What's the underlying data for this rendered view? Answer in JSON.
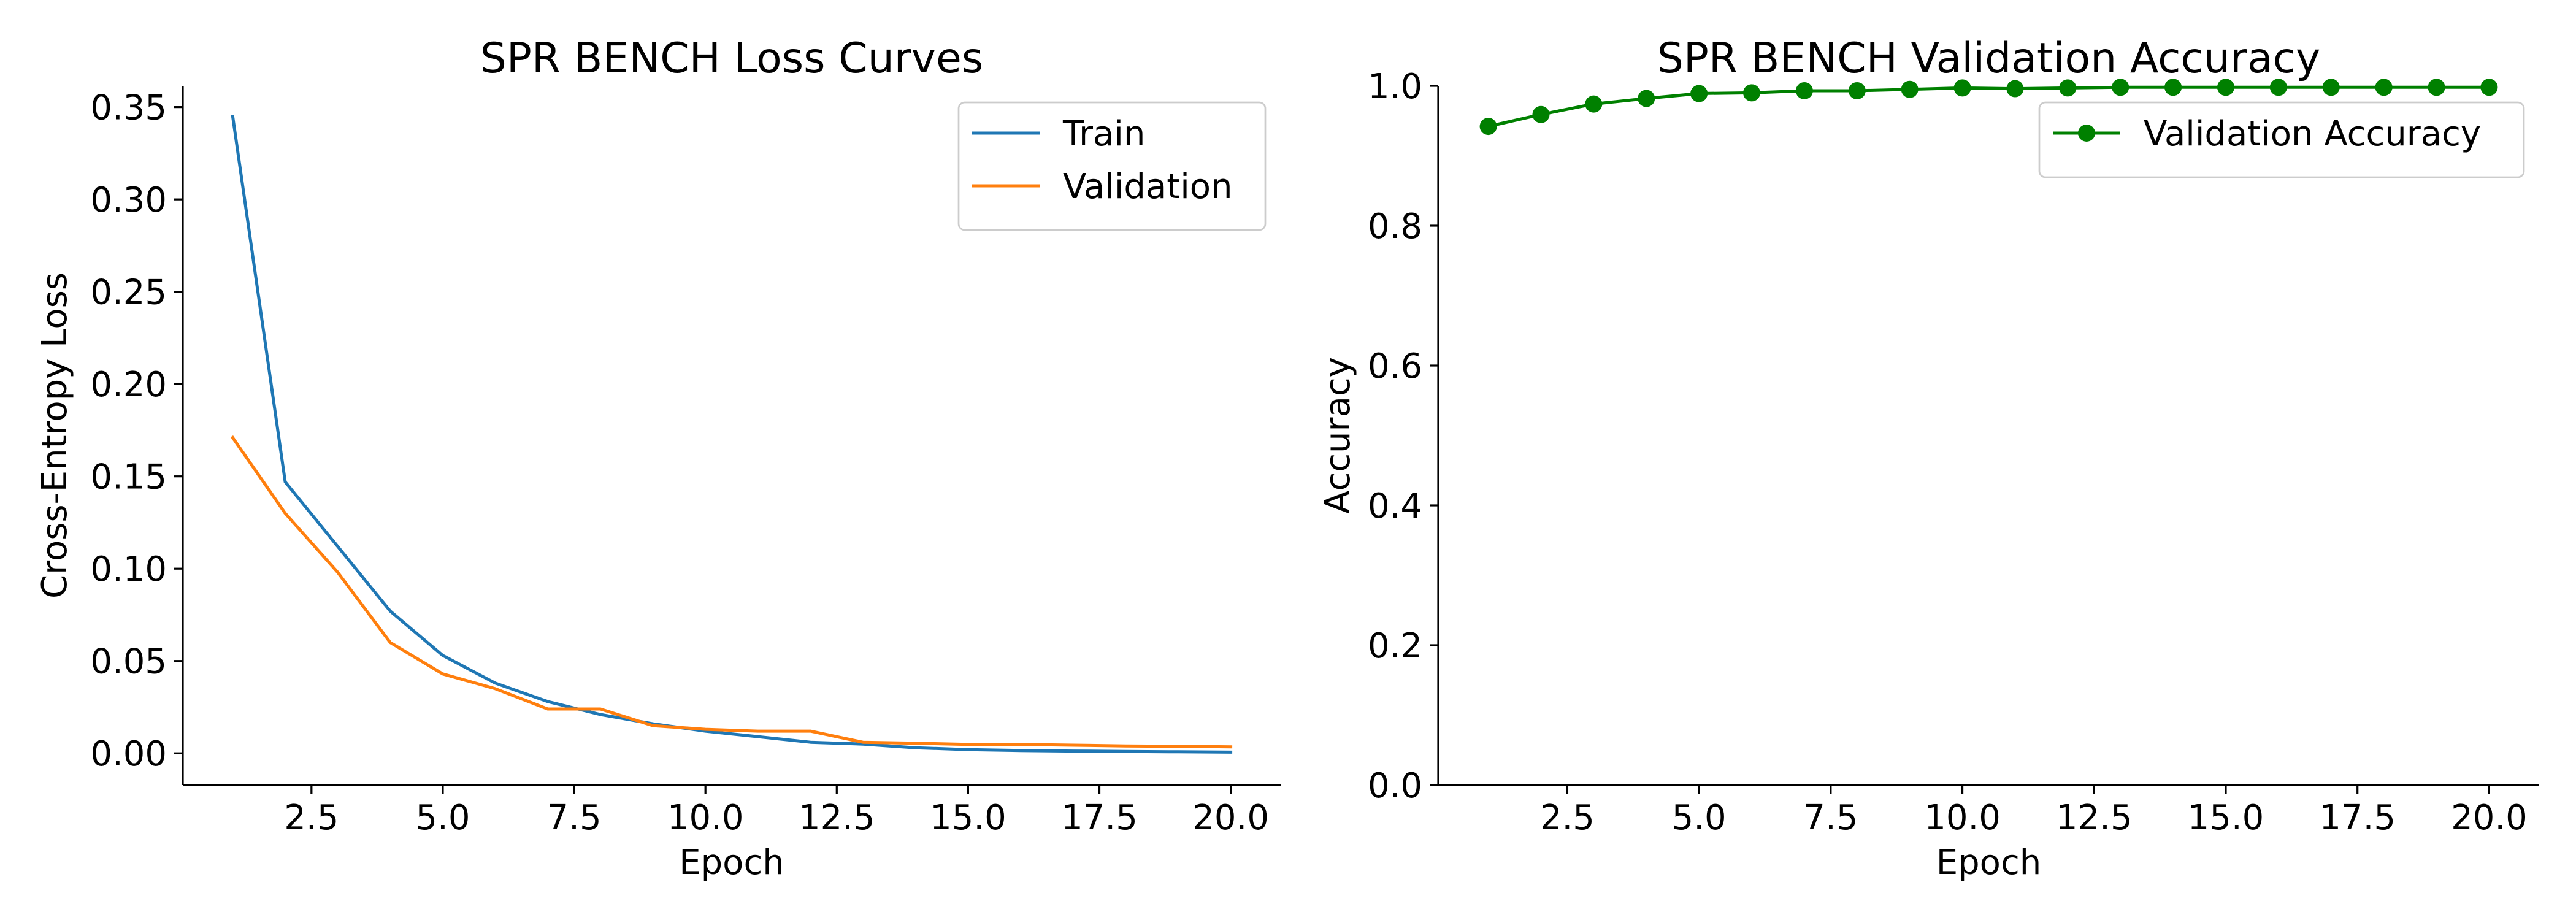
{
  "chart_data": [
    {
      "type": "line",
      "title": "SPR BENCH Loss Curves",
      "xlabel": "Epoch",
      "ylabel": "Cross-Entropy Loss",
      "xlim": [
        0.05,
        20.95
      ],
      "ylim": [
        -0.0172,
        0.3615
      ],
      "xticks": [
        2.5,
        5.0,
        7.5,
        10.0,
        12.5,
        15.0,
        17.5,
        20.0
      ],
      "xtick_labels": [
        "2.5",
        "5.0",
        "7.5",
        "10.0",
        "12.5",
        "15.0",
        "17.5",
        "20.0"
      ],
      "yticks": [
        0.0,
        0.05,
        0.1,
        0.15,
        0.2,
        0.25,
        0.3,
        0.35
      ],
      "ytick_labels": [
        "0.00",
        "0.05",
        "0.10",
        "0.15",
        "0.20",
        "0.25",
        "0.30",
        "0.35"
      ],
      "grid": false,
      "legend": "upper right",
      "x": [
        1,
        2,
        3,
        4,
        5,
        6,
        7,
        8,
        9,
        10,
        11,
        12,
        13,
        14,
        15,
        16,
        17,
        18,
        19,
        20
      ],
      "series": [
        {
          "name": "Train",
          "color": "#1f77b4",
          "marker": "none",
          "values": [
            0.345,
            0.147,
            0.112,
            0.077,
            0.053,
            0.038,
            0.028,
            0.021,
            0.016,
            0.012,
            0.009,
            0.006,
            0.005,
            0.003,
            0.002,
            0.0015,
            0.0012,
            0.001,
            0.0008,
            0.0006
          ]
        },
        {
          "name": "Validation",
          "color": "#ff7f0e",
          "marker": "none",
          "values": [
            0.171,
            0.13,
            0.098,
            0.06,
            0.043,
            0.035,
            0.024,
            0.024,
            0.015,
            0.013,
            0.012,
            0.012,
            0.006,
            0.0055,
            0.0048,
            0.0048,
            0.0044,
            0.004,
            0.0038,
            0.0035
          ]
        }
      ]
    },
    {
      "type": "line",
      "title": "SPR BENCH Validation Accuracy",
      "xlabel": "Epoch",
      "ylabel": "Accuracy",
      "xlim": [
        0.05,
        20.95
      ],
      "ylim": [
        0.0,
        1.0
      ],
      "xticks": [
        2.5,
        5.0,
        7.5,
        10.0,
        12.5,
        15.0,
        17.5,
        20.0
      ],
      "xtick_labels": [
        "2.5",
        "5.0",
        "7.5",
        "10.0",
        "12.5",
        "15.0",
        "17.5",
        "20.0"
      ],
      "yticks": [
        0.0,
        0.2,
        0.4,
        0.6,
        0.8,
        1.0
      ],
      "ytick_labels": [
        "0.0",
        "0.2",
        "0.4",
        "0.6",
        "0.8",
        "1.0"
      ],
      "grid": false,
      "legend": "upper right",
      "x": [
        1,
        2,
        3,
        4,
        5,
        6,
        7,
        8,
        9,
        10,
        11,
        12,
        13,
        14,
        15,
        16,
        17,
        18,
        19,
        20
      ],
      "series": [
        {
          "name": "Validation Accuracy",
          "color": "#008000",
          "marker": "circle",
          "values": [
            0.942,
            0.959,
            0.974,
            0.982,
            0.989,
            0.99,
            0.993,
            0.993,
            0.995,
            0.997,
            0.996,
            0.997,
            0.998,
            0.998,
            0.998,
            0.998,
            0.998,
            0.998,
            0.998,
            0.998
          ]
        }
      ]
    }
  ]
}
